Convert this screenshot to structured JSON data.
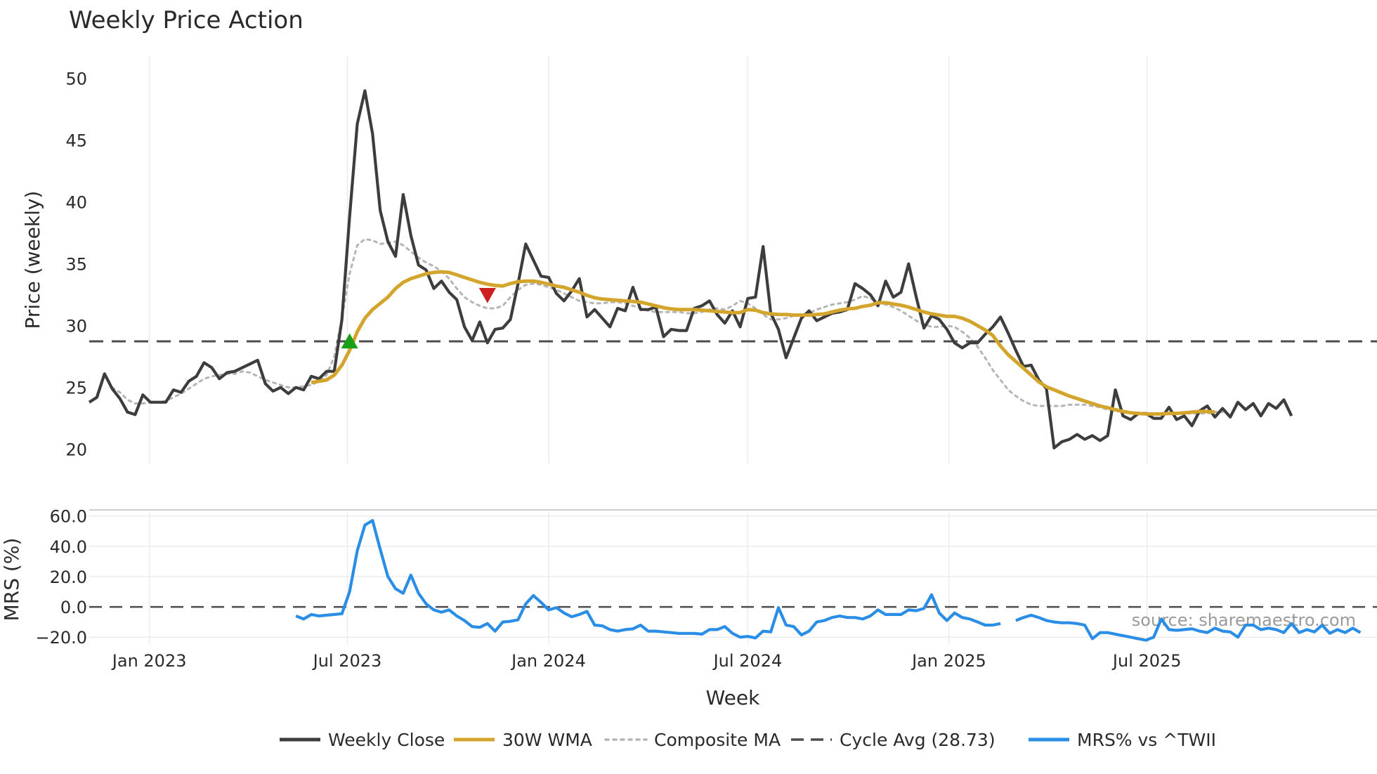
{
  "chart_data": [
    {
      "type": "line",
      "title": "Weekly Price Action",
      "ylabel": "Price (weekly)",
      "xlabel": "Week",
      "ylim": [
        18.5,
        51
      ],
      "yticks": [
        20,
        25,
        30,
        35,
        40,
        45,
        50
      ],
      "x_start": "2022-11-07",
      "x_step_days": 7,
      "series": [
        {
          "name": "Weekly Close",
          "color": "#3d3d3d",
          "start_index": 0,
          "values": [
            23.8,
            24.2,
            26.1,
            24.9,
            24.1,
            23.0,
            22.8,
            24.4,
            23.8,
            23.8,
            23.8,
            24.8,
            24.6,
            25.5,
            25.9,
            27.0,
            26.6,
            25.7,
            26.2,
            26.3,
            26.6,
            26.9,
            27.2,
            25.3,
            24.7,
            25.0,
            24.5,
            25.0,
            24.8,
            25.9,
            25.7,
            26.3,
            26.3,
            30.5,
            38.8,
            46.3,
            49.0,
            45.5,
            39.3,
            36.8,
            35.6,
            40.6,
            37.3,
            34.9,
            34.5,
            33.0,
            33.6,
            32.7,
            32.1,
            29.9,
            28.8,
            30.3,
            28.6,
            29.7,
            29.8,
            30.5,
            33.4,
            36.6,
            35.3,
            34.0,
            33.9,
            32.6,
            32.0,
            32.8,
            33.8,
            30.7,
            31.3,
            30.6,
            29.9,
            31.4,
            31.2,
            33.1,
            31.3,
            31.3,
            31.5,
            29.1,
            29.7,
            29.6,
            29.6,
            31.4,
            31.6,
            32.0,
            30.9,
            30.2,
            31.2,
            29.9,
            32.2,
            32.3,
            36.4,
            31.0,
            29.7,
            27.4,
            29.0,
            30.6,
            31.2,
            30.4,
            30.7,
            31.0,
            31.1,
            31.3,
            33.4,
            33.0,
            32.5,
            31.6,
            33.6,
            32.3,
            32.7,
            35.0,
            32.3,
            29.8,
            30.8,
            30.5,
            29.7,
            28.6,
            28.2,
            28.6,
            28.6,
            29.3,
            29.9,
            30.7,
            29.4,
            28.0,
            26.7,
            26.8,
            25.6,
            24.9,
            20.1,
            20.6,
            20.8,
            21.2,
            20.8,
            21.1,
            20.7,
            21.1,
            24.8,
            22.7,
            22.4,
            22.9,
            22.9,
            22.5,
            22.5,
            23.4,
            22.4,
            22.7,
            21.9,
            23.1,
            23.5,
            22.6,
            23.3,
            22.6,
            23.8,
            23.2,
            23.7,
            22.7,
            23.7,
            23.3,
            24.0,
            22.7
          ]
        },
        {
          "name": "30W WMA",
          "color": "#d4a52c",
          "start_index": 29,
          "values": [
            25.4,
            25.5,
            25.6,
            26.0,
            26.8,
            28.0,
            29.5,
            30.6,
            31.3,
            31.8,
            32.3,
            33.0,
            33.5,
            33.8,
            34.0,
            34.2,
            34.3,
            34.35,
            34.3,
            34.1,
            33.9,
            33.7,
            33.5,
            33.35,
            33.25,
            33.2,
            33.4,
            33.55,
            33.6,
            33.6,
            33.5,
            33.35,
            33.2,
            33.1,
            32.9,
            32.7,
            32.45,
            32.25,
            32.15,
            32.1,
            32.05,
            32.0,
            31.95,
            31.9,
            31.75,
            31.6,
            31.45,
            31.35,
            31.3,
            31.3,
            31.3,
            31.25,
            31.2,
            31.15,
            31.1,
            31.05,
            31.05,
            31.3,
            31.25,
            31.05,
            30.95,
            30.9,
            30.9,
            30.85,
            30.85,
            30.85,
            30.9,
            30.95,
            31.1,
            31.25,
            31.35,
            31.4,
            31.55,
            31.65,
            31.85,
            31.85,
            31.75,
            31.65,
            31.5,
            31.3,
            31.1,
            30.95,
            30.85,
            30.75,
            30.75,
            30.6,
            30.35,
            30.0,
            29.65,
            29.2,
            28.35,
            27.65,
            27.1,
            26.55,
            26.0,
            25.45,
            25.05,
            24.8,
            24.55,
            24.3,
            24.1,
            23.9,
            23.7,
            23.5,
            23.35,
            23.2,
            23.05,
            22.95,
            22.9,
            22.85,
            22.85,
            22.85,
            22.9,
            22.9,
            22.95,
            23.0,
            23.05,
            23.05,
            23.0
          ]
        },
        {
          "name": "Composite MA",
          "color": "#b5b5b5",
          "start_index": 3,
          "values": [
            25.0,
            24.6,
            24.0,
            23.7,
            23.7,
            23.8,
            23.8,
            23.9,
            24.2,
            24.5,
            24.9,
            25.3,
            25.7,
            25.9,
            26.0,
            26.1,
            26.1,
            26.3,
            26.2,
            25.9,
            25.6,
            25.4,
            25.2,
            25.0,
            25.0,
            25.1,
            25.2,
            25.5,
            26.0,
            27.5,
            30.6,
            34.2,
            36.5,
            37.0,
            36.9,
            36.6,
            36.7,
            36.8,
            36.5,
            36.0,
            35.5,
            35.1,
            34.8,
            34.4,
            33.8,
            33.0,
            32.3,
            31.9,
            31.6,
            31.4,
            31.4,
            31.6,
            32.3,
            32.9,
            33.3,
            33.4,
            33.3,
            33.1,
            32.9,
            32.6,
            32.3,
            32.0,
            31.9,
            31.8,
            31.8,
            31.9,
            31.9,
            31.8,
            31.6,
            31.4,
            31.2,
            31.1,
            31.1,
            31.1,
            31.1,
            31.0,
            31.0,
            31.1,
            31.3,
            31.4,
            31.3,
            31.6,
            32.0,
            31.8,
            31.4,
            30.9,
            30.5,
            30.5,
            30.6,
            30.8,
            30.9,
            31.0,
            31.3,
            31.5,
            31.7,
            31.8,
            31.9,
            32.1,
            32.4,
            32.2,
            31.9,
            31.7,
            31.5,
            31.2,
            30.8,
            30.4,
            30.1,
            29.9,
            29.9,
            30.0,
            29.9,
            29.5,
            29.0,
            28.3,
            27.4,
            26.4,
            25.6,
            24.8,
            24.3,
            23.9,
            23.6,
            23.5,
            23.5,
            23.5,
            23.5,
            23.6,
            23.6,
            23.6,
            23.5,
            23.4,
            23.2,
            23.1,
            23.0,
            23.0,
            22.9,
            22.9,
            22.9,
            22.9,
            22.9,
            22.9,
            22.9,
            22.9,
            22.9,
            22.9,
            23.0,
            23.0
          ]
        },
        {
          "name": "Cycle Avg (28.73)",
          "color": "#4d4d4d",
          "constant": 28.73
        }
      ],
      "markers": [
        {
          "type": "buy",
          "shape": "triangle-up",
          "color": "#1a9f1a",
          "index": 34,
          "value": 28.7
        },
        {
          "type": "sell",
          "shape": "triangle-down",
          "color": "#cc1f1f",
          "index": 52,
          "value": 32.5
        }
      ]
    },
    {
      "type": "line",
      "ylabel": "MRS (%)",
      "ylim": [
        -25,
        64
      ],
      "yticks": [
        -20.0,
        0.0,
        20.0,
        40.0,
        60.0
      ],
      "ytick_labels": [
        "−20.0",
        "0.0",
        "20.0",
        "40.0",
        "60.0"
      ],
      "baseline": 0,
      "series": [
        {
          "name": "MRS% vs ^TWII",
          "color": "#2b8ee6",
          "start_index": 27,
          "values": [
            -6,
            -8,
            -5,
            -6,
            -5.5,
            -5,
            -4.5,
            10,
            37,
            54,
            57,
            38,
            20,
            12,
            9,
            21,
            9,
            2,
            -2,
            -3.5,
            -2,
            -6,
            -9,
            -13,
            -13.5,
            -11,
            -16,
            -10,
            -9.5,
            -8.5,
            2,
            7.5,
            3,
            -2,
            -0.5,
            -4,
            -6.5,
            -5,
            -3,
            -12,
            -12.5,
            -15,
            -16,
            -15,
            -14.5,
            -12,
            -16,
            -16,
            -16.5,
            -17,
            -17.5,
            -17.5,
            -17.5,
            -18,
            -15,
            -15,
            -13,
            -17.5,
            -20,
            -19.5,
            -20.5,
            -16,
            -16.5,
            -0.5,
            -12,
            -13,
            -18.5,
            -16,
            -10,
            -9,
            -7,
            -6,
            -7,
            -7,
            -8,
            -6,
            -2,
            -5,
            -5,
            -5,
            -2,
            -2.5,
            -1,
            8,
            -4,
            -9,
            -4,
            -7,
            -8,
            -10,
            -12,
            -12,
            -11,
            null,
            -9,
            -7,
            -5.5,
            -7,
            -9,
            -10,
            -10.5,
            -10.5,
            -11,
            -12,
            -21,
            -17,
            -17,
            -18,
            -19,
            -20,
            -21,
            -22,
            -20,
            -8,
            -15,
            -15.5,
            -15,
            -14.5,
            -16,
            -17,
            -14,
            -16,
            -16.5,
            -20,
            -12,
            -12,
            -15,
            -14,
            -15,
            -17,
            -11,
            -17,
            -15,
            -16.5,
            -12,
            -17.5,
            -15,
            -17,
            -14,
            -17
          ]
        }
      ],
      "source": "source: sharemaestro.com"
    }
  ],
  "x_axis": {
    "title": "Week",
    "ticks": [
      {
        "label": "Jan 2023",
        "date": "2023-01-01"
      },
      {
        "label": "Jul 2023",
        "date": "2023-07-01"
      },
      {
        "label": "Jan 2024",
        "date": "2024-01-01"
      },
      {
        "label": "Jul 2024",
        "date": "2024-07-01"
      },
      {
        "label": "Jan 2025",
        "date": "2025-01-01"
      },
      {
        "label": "Jul 2025",
        "date": "2025-07-01"
      }
    ]
  },
  "legend": {
    "placement": "bottom",
    "items": [
      {
        "label": "Weekly Close",
        "style": "solid",
        "color": "#3d3d3d"
      },
      {
        "label": "30W WMA",
        "style": "solid",
        "color": "#d4a52c"
      },
      {
        "label": "Composite MA",
        "style": "dotted",
        "color": "#b5b5b5"
      },
      {
        "label": "Cycle Avg (28.73)",
        "style": "dashed",
        "color": "#4d4d4d"
      },
      {
        "label": "MRS% vs ^TWII",
        "style": "solid",
        "color": "#2b8ee6"
      }
    ]
  }
}
